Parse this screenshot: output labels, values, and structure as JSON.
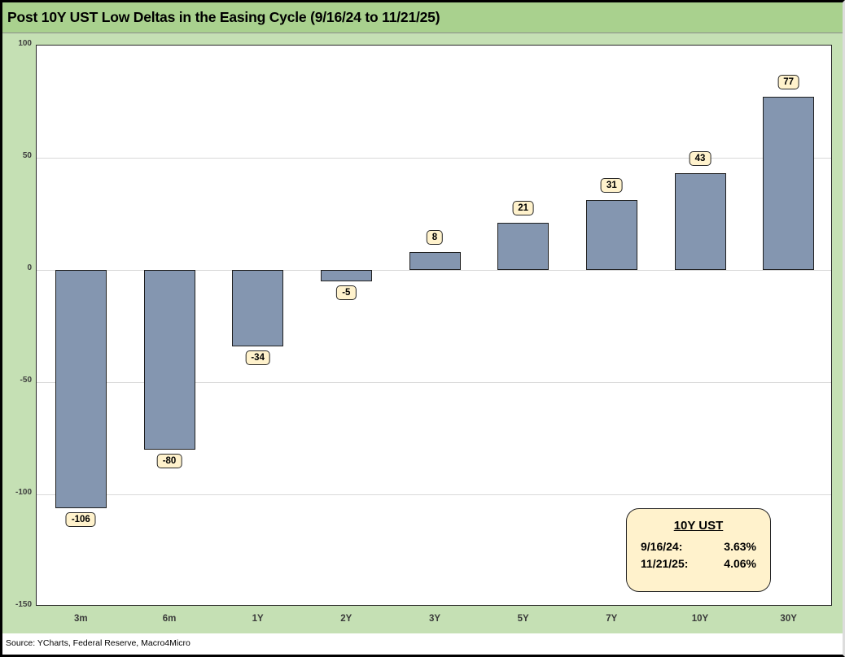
{
  "header": {
    "title": "Post 10Y UST Low Deltas in the Easing Cycle (9/16/24 to 11/21/25)"
  },
  "chart_data": {
    "type": "bar",
    "title": "Post 10Y UST Low Deltas in the Easing Cycle (9/16/24 to 11/21/25)",
    "categories": [
      "3m",
      "6m",
      "1Y",
      "2Y",
      "3Y",
      "5Y",
      "7Y",
      "10Y",
      "30Y"
    ],
    "values": [
      -106,
      -80,
      -34,
      -5,
      8,
      21,
      31,
      43,
      77
    ],
    "data_labels": [
      "-106",
      "-80",
      "-34",
      "-5",
      "8",
      "21",
      "31",
      "43",
      "77"
    ],
    "ylim": [
      -150,
      100
    ],
    "y_ticks": [
      100,
      50,
      0,
      -50,
      -100,
      -150
    ],
    "grid": "horizontal",
    "legend": "none"
  },
  "callout": {
    "title": "10Y UST",
    "rows": [
      {
        "label": "9/16/24:",
        "value": "3.63%"
      },
      {
        "label": "11/21/25:",
        "value": "4.06%"
      }
    ]
  },
  "source_note": "Source: YCharts, Federal Reserve, Macro4Micro",
  "colors": {
    "title_band_bg": "#A9D18E",
    "body_bg": "#C5E0B4",
    "plot_bg": "#FFFFFF",
    "bar_fill": "#8496B0",
    "bar_border": "#1F1F1F",
    "label_box_bg": "#FFF2CC",
    "gridline": "#D9D9D9",
    "text": "#000000"
  }
}
